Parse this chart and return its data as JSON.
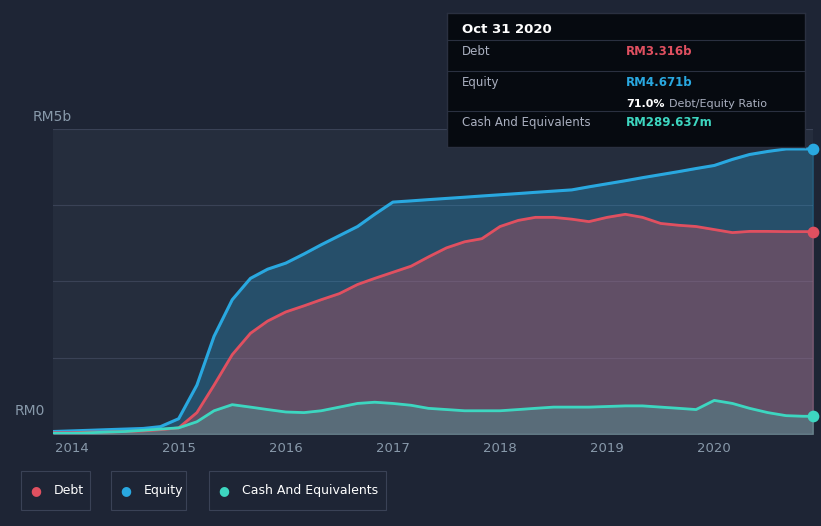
{
  "background_color": "#1e2535",
  "plot_bg_color": "#252d3d",
  "title_label": "RM5b",
  "zero_label": "RM0",
  "x_ticks": [
    2014,
    2015,
    2016,
    2017,
    2018,
    2019,
    2020
  ],
  "y_max": 5.0,
  "equity_color": "#29a8e0",
  "debt_color": "#e05060",
  "cash_color": "#3dd6c0",
  "tooltip": {
    "date": "Oct 31 2020",
    "debt_label": "Debt",
    "debt_value": "RM3.316b",
    "equity_label": "Equity",
    "equity_value": "RM4.671b",
    "ratio_value": "71.0%",
    "ratio_label": "Debt/Equity Ratio",
    "cash_label": "Cash And Equivalents",
    "cash_value": "RM289.637m"
  },
  "legend_items": [
    {
      "label": "Debt",
      "color": "#e05060"
    },
    {
      "label": "Equity",
      "color": "#29a8e0"
    },
    {
      "label": "Cash And Equivalents",
      "color": "#3dd6c0"
    }
  ],
  "time_points": [
    2013.83,
    2014.0,
    2014.17,
    2014.33,
    2014.5,
    2014.67,
    2014.83,
    2015.0,
    2015.17,
    2015.33,
    2015.5,
    2015.67,
    2015.83,
    2016.0,
    2016.17,
    2016.33,
    2016.5,
    2016.67,
    2016.83,
    2017.0,
    2017.17,
    2017.33,
    2017.5,
    2017.67,
    2017.83,
    2018.0,
    2018.17,
    2018.33,
    2018.5,
    2018.67,
    2018.83,
    2019.0,
    2019.17,
    2019.33,
    2019.5,
    2019.67,
    2019.83,
    2020.0,
    2020.17,
    2020.33,
    2020.5,
    2020.67,
    2020.83,
    2020.92
  ],
  "equity_values": [
    0.04,
    0.05,
    0.06,
    0.07,
    0.08,
    0.09,
    0.12,
    0.25,
    0.8,
    1.6,
    2.2,
    2.55,
    2.7,
    2.8,
    2.95,
    3.1,
    3.25,
    3.4,
    3.6,
    3.8,
    3.82,
    3.84,
    3.86,
    3.88,
    3.9,
    3.92,
    3.94,
    3.96,
    3.98,
    4.0,
    4.05,
    4.1,
    4.15,
    4.2,
    4.25,
    4.3,
    4.35,
    4.4,
    4.5,
    4.58,
    4.63,
    4.671,
    4.671,
    4.671
  ],
  "debt_values": [
    0.02,
    0.02,
    0.03,
    0.03,
    0.04,
    0.05,
    0.07,
    0.1,
    0.35,
    0.8,
    1.3,
    1.65,
    1.85,
    2.0,
    2.1,
    2.2,
    2.3,
    2.45,
    2.55,
    2.65,
    2.75,
    2.9,
    3.05,
    3.15,
    3.2,
    3.4,
    3.5,
    3.55,
    3.55,
    3.52,
    3.48,
    3.55,
    3.6,
    3.55,
    3.45,
    3.42,
    3.4,
    3.35,
    3.3,
    3.32,
    3.32,
    3.316,
    3.316,
    3.316
  ],
  "cash_values": [
    0.01,
    0.01,
    0.02,
    0.03,
    0.04,
    0.06,
    0.08,
    0.1,
    0.2,
    0.38,
    0.48,
    0.44,
    0.4,
    0.36,
    0.35,
    0.38,
    0.44,
    0.5,
    0.52,
    0.5,
    0.47,
    0.42,
    0.4,
    0.38,
    0.38,
    0.38,
    0.4,
    0.42,
    0.44,
    0.44,
    0.44,
    0.45,
    0.46,
    0.46,
    0.44,
    0.42,
    0.4,
    0.55,
    0.5,
    0.42,
    0.35,
    0.3,
    0.29,
    0.29
  ]
}
